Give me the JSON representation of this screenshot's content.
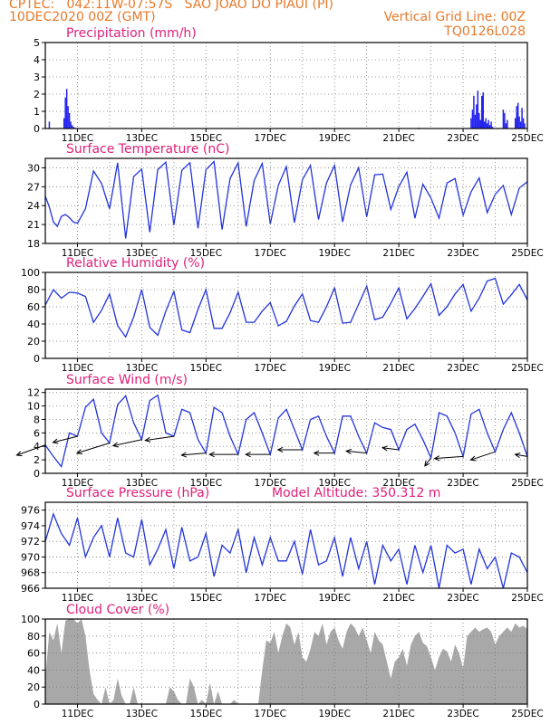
{
  "header": {
    "line1": "CPTEC:   042:11W-07:57S   SAO JOAO DO PIAUI (PI)",
    "date": "10DEC2020 00Z (GMT)",
    "grid_note": "Vertical Grid Line: 00Z",
    "run_id": "TQ0126L028"
  },
  "colors": {
    "header": "#e8792a",
    "title": "#e0207a",
    "line": "#2233dd",
    "bar": "#2222ee",
    "cloud": "#a8a8a8",
    "arrow": "#000000"
  },
  "time_axis": {
    "start_label": "10DEC",
    "start_hour": 0,
    "end_hour": 360,
    "tick_hours": [
      24,
      72,
      120,
      168,
      216,
      264,
      312,
      360
    ],
    "tick_labels": [
      "11DEC",
      "13DEC",
      "15DEC",
      "17DEC",
      "19DEC",
      "21DEC",
      "23DEC",
      "25DEC"
    ],
    "vertical_grid_every_hours": 24
  },
  "chart_data": [
    {
      "type": "bar",
      "title": "Precipitation (mm/h)",
      "ylim": [
        0,
        5
      ],
      "yticks": [
        0,
        1,
        2,
        3,
        4,
        5
      ],
      "x_hours": [
        3,
        14,
        15,
        16,
        17,
        18,
        19,
        20,
        21,
        22,
        60,
        90,
        150,
        200,
        240,
        279,
        318,
        319,
        320,
        321,
        322,
        323,
        324,
        325,
        326,
        327,
        328,
        329,
        330,
        331,
        332,
        333,
        334,
        342,
        343,
        344,
        345,
        351,
        352,
        353,
        354,
        355,
        356,
        357,
        358
      ],
      "values": [
        0.4,
        0.6,
        1.8,
        2.3,
        1.3,
        0.9,
        0.4,
        0.2,
        0.1,
        0.05,
        0.03,
        0.03,
        0.03,
        0.03,
        0.03,
        0.05,
        0.6,
        1.1,
        1.9,
        0.8,
        1.4,
        2.2,
        0.9,
        0.5,
        1.9,
        2.1,
        0.4,
        0.6,
        0.3,
        0.5,
        0.2,
        0.4,
        0.1,
        1.1,
        0.9,
        0.3,
        0.5,
        0.6,
        1.3,
        1.5,
        0.7,
        0.4,
        1.2,
        0.6,
        0.3
      ]
    },
    {
      "type": "line",
      "title": "Surface Temperature (nC)",
      "ylim": [
        18,
        31.5
      ],
      "yticks": [
        18,
        21,
        24,
        27,
        30
      ],
      "x_hours": [
        0,
        3,
        6,
        9,
        12,
        15,
        18,
        21,
        24,
        30,
        36,
        42,
        48,
        54,
        60,
        66,
        72,
        78,
        84,
        90,
        96,
        102,
        108,
        114,
        120,
        126,
        132,
        138,
        144,
        150,
        156,
        162,
        168,
        174,
        180,
        186,
        192,
        198,
        204,
        210,
        216,
        222,
        228,
        234,
        240,
        246,
        252,
        258,
        264,
        270,
        276,
        282,
        288,
        294,
        300,
        306,
        312,
        318,
        324,
        330,
        336,
        342,
        348,
        354,
        360
      ],
      "values": [
        25.5,
        23.8,
        21.4,
        20.7,
        22.3,
        22.6,
        22.1,
        21.4,
        21.2,
        23.5,
        29.5,
        27.5,
        23.5,
        30.8,
        18.8,
        28.6,
        29.8,
        19.8,
        29.7,
        30.9,
        20.9,
        29.6,
        30.8,
        20.4,
        29.7,
        31.0,
        20.2,
        28.3,
        30.8,
        20.7,
        28.0,
        30.7,
        21.1,
        27.2,
        30.2,
        21.3,
        28.1,
        30.4,
        21.8,
        27.6,
        30.4,
        21.4,
        27.3,
        30.0,
        22.2,
        28.9,
        29.0,
        23.4,
        27.0,
        29.3,
        22.0,
        27.4,
        25.2,
        22.0,
        27.6,
        28.3,
        22.5,
        26.2,
        28.4,
        22.9,
        25.8,
        27.2,
        22.6,
        26.8,
        27.8
      ]
    },
    {
      "type": "line",
      "title": "Relative Humidity (%)",
      "ylim": [
        0,
        100
      ],
      "yticks": [
        0,
        20,
        40,
        60,
        80,
        100
      ],
      "x_hours": [
        0,
        6,
        12,
        18,
        24,
        30,
        36,
        42,
        48,
        54,
        60,
        66,
        72,
        78,
        84,
        90,
        96,
        102,
        108,
        114,
        120,
        126,
        132,
        138,
        144,
        150,
        156,
        162,
        168,
        174,
        180,
        186,
        192,
        198,
        204,
        210,
        216,
        222,
        228,
        234,
        240,
        246,
        252,
        258,
        264,
        270,
        276,
        282,
        288,
        294,
        300,
        306,
        312,
        318,
        324,
        330,
        336,
        342,
        348,
        354,
        360
      ],
      "values": [
        62,
        80,
        70,
        77,
        76,
        72,
        42,
        56,
        75,
        38,
        25,
        48,
        80,
        36,
        27,
        55,
        78,
        33,
        30,
        57,
        80,
        35,
        35,
        53,
        77,
        42,
        42,
        55,
        65,
        38,
        43,
        61,
        75,
        44,
        42,
        60,
        82,
        41,
        42,
        63,
        84,
        45,
        48,
        64,
        82,
        46,
        58,
        72,
        87,
        50,
        60,
        75,
        86,
        55,
        70,
        90,
        93,
        63,
        74,
        86,
        68
      ]
    },
    {
      "type": "line",
      "title": "Surface Wind (m/s)",
      "ylim": [
        0,
        12.5
      ],
      "yticks": [
        0,
        2,
        4,
        6,
        8,
        10,
        12
      ],
      "x_hours": [
        0,
        6,
        12,
        18,
        24,
        30,
        36,
        42,
        48,
        54,
        60,
        66,
        72,
        78,
        84,
        90,
        96,
        102,
        108,
        114,
        120,
        126,
        132,
        138,
        144,
        150,
        156,
        162,
        168,
        174,
        180,
        186,
        192,
        198,
        204,
        210,
        216,
        222,
        228,
        234,
        240,
        246,
        252,
        258,
        264,
        270,
        276,
        282,
        288,
        294,
        300,
        306,
        312,
        318,
        324,
        330,
        336,
        342,
        348,
        354,
        360
      ],
      "values": [
        4.2,
        2.5,
        1.0,
        6.0,
        5.5,
        9.8,
        11.0,
        6.0,
        4.5,
        10.2,
        11.5,
        7.5,
        5.0,
        10.8,
        11.6,
        6.0,
        5.5,
        9.5,
        9.0,
        5.0,
        3.0,
        9.8,
        9.0,
        5.5,
        2.8,
        8.0,
        9.0,
        6.0,
        2.8,
        8.2,
        9.5,
        6.5,
        3.5,
        8.0,
        8.5,
        5.5,
        3.0,
        8.5,
        8.5,
        5.5,
        3.0,
        7.5,
        6.8,
        6.5,
        3.5,
        6.5,
        7.3,
        5.0,
        2.3,
        9.0,
        8.5,
        6.0,
        2.5,
        8.8,
        9.5,
        6.0,
        3.2,
        6.5,
        9.0,
        6.0,
        2.5
      ],
      "vectors": {
        "x_hours": [
          0,
          24,
          48,
          72,
          96,
          120,
          144,
          168,
          192,
          216,
          240,
          264,
          288,
          312,
          336,
          360
        ],
        "u": [
          -7,
          -6,
          -8,
          -7,
          -7,
          -6,
          -7,
          -6,
          -6,
          -5,
          -5,
          -4,
          -1.5,
          -7,
          -6,
          -3
        ],
        "v": [
          -2.5,
          -1.5,
          -2.5,
          -1.5,
          -1,
          -0.5,
          0,
          0,
          0,
          0,
          0.5,
          0.5,
          -2,
          -0.5,
          -2,
          0.5
        ]
      }
    },
    {
      "type": "line",
      "title": "Surface Pressure (hPa)",
      "annotation": "Model Altitude: 350.312 m",
      "ylim": [
        966,
        977
      ],
      "yticks": [
        966,
        968,
        970,
        972,
        974,
        976
      ],
      "x_hours": [
        0,
        6,
        12,
        18,
        24,
        30,
        36,
        42,
        48,
        54,
        60,
        66,
        72,
        78,
        84,
        90,
        96,
        102,
        108,
        114,
        120,
        126,
        132,
        138,
        144,
        150,
        156,
        162,
        168,
        174,
        180,
        186,
        192,
        198,
        204,
        210,
        216,
        222,
        228,
        234,
        240,
        246,
        252,
        258,
        264,
        270,
        276,
        282,
        288,
        294,
        300,
        306,
        312,
        318,
        324,
        330,
        336,
        342,
        348,
        354,
        360
      ],
      "values": [
        972,
        975.5,
        973,
        971.5,
        975,
        970,
        972.5,
        974,
        970,
        975,
        970.5,
        970,
        974.8,
        969,
        971,
        973.5,
        968.5,
        973.8,
        969.5,
        970,
        973,
        967.5,
        971.5,
        970.5,
        973.5,
        968,
        972.5,
        969,
        972.5,
        969.5,
        969.5,
        972,
        967.8,
        973.5,
        969,
        969.5,
        972.5,
        967.5,
        972.5,
        968.5,
        972,
        966.5,
        971.5,
        969.5,
        971,
        966.5,
        971.5,
        968,
        971.5,
        966,
        971.5,
        970.5,
        971,
        966.5,
        971,
        968.5,
        970,
        966,
        970.5,
        970,
        968
      ]
    },
    {
      "type": "area",
      "title": "Cloud Cover (%)",
      "ylim": [
        0,
        100
      ],
      "yticks": [
        0,
        20,
        40,
        60,
        80,
        100
      ],
      "x_hours": [
        0,
        3,
        6,
        9,
        12,
        15,
        18,
        21,
        24,
        27,
        30,
        33,
        36,
        39,
        42,
        45,
        48,
        51,
        54,
        57,
        60,
        63,
        66,
        69,
        72,
        75,
        78,
        81,
        84,
        87,
        90,
        93,
        96,
        99,
        102,
        105,
        108,
        111,
        114,
        117,
        120,
        123,
        126,
        129,
        132,
        135,
        138,
        141,
        144,
        147,
        150,
        153,
        156,
        159,
        162,
        165,
        168,
        171,
        174,
        177,
        180,
        183,
        186,
        189,
        192,
        195,
        198,
        201,
        204,
        207,
        210,
        213,
        216,
        219,
        222,
        225,
        228,
        231,
        234,
        237,
        240,
        243,
        246,
        249,
        252,
        255,
        258,
        261,
        264,
        267,
        270,
        273,
        276,
        279,
        282,
        285,
        288,
        291,
        294,
        297,
        300,
        303,
        306,
        309,
        312,
        315,
        318,
        321,
        324,
        327,
        330,
        333,
        336,
        339,
        342,
        345,
        348,
        351,
        354,
        357,
        360
      ],
      "values": [
        30,
        85,
        75,
        95,
        60,
        98,
        100,
        100,
        95,
        100,
        80,
        40,
        12,
        5,
        0,
        20,
        0,
        5,
        30,
        10,
        0,
        0,
        20,
        0,
        0,
        0,
        0,
        0,
        0,
        0,
        0,
        20,
        15,
        5,
        0,
        0,
        30,
        20,
        0,
        5,
        0,
        25,
        0,
        15,
        0,
        0,
        0,
        5,
        0,
        0,
        0,
        0,
        0,
        0,
        40,
        75,
        72,
        85,
        60,
        80,
        95,
        90,
        70,
        85,
        55,
        50,
        65,
        85,
        80,
        95,
        70,
        85,
        90,
        75,
        65,
        85,
        95,
        90,
        80,
        90,
        75,
        60,
        85,
        75,
        70,
        50,
        30,
        50,
        55,
        65,
        45,
        70,
        80,
        85,
        72,
        68,
        55,
        40,
        55,
        65,
        62,
        50,
        70,
        60,
        42,
        80,
        85,
        90,
        85,
        88,
        90,
        85,
        70,
        80,
        85,
        90,
        85,
        95,
        90,
        92,
        88
      ]
    }
  ]
}
